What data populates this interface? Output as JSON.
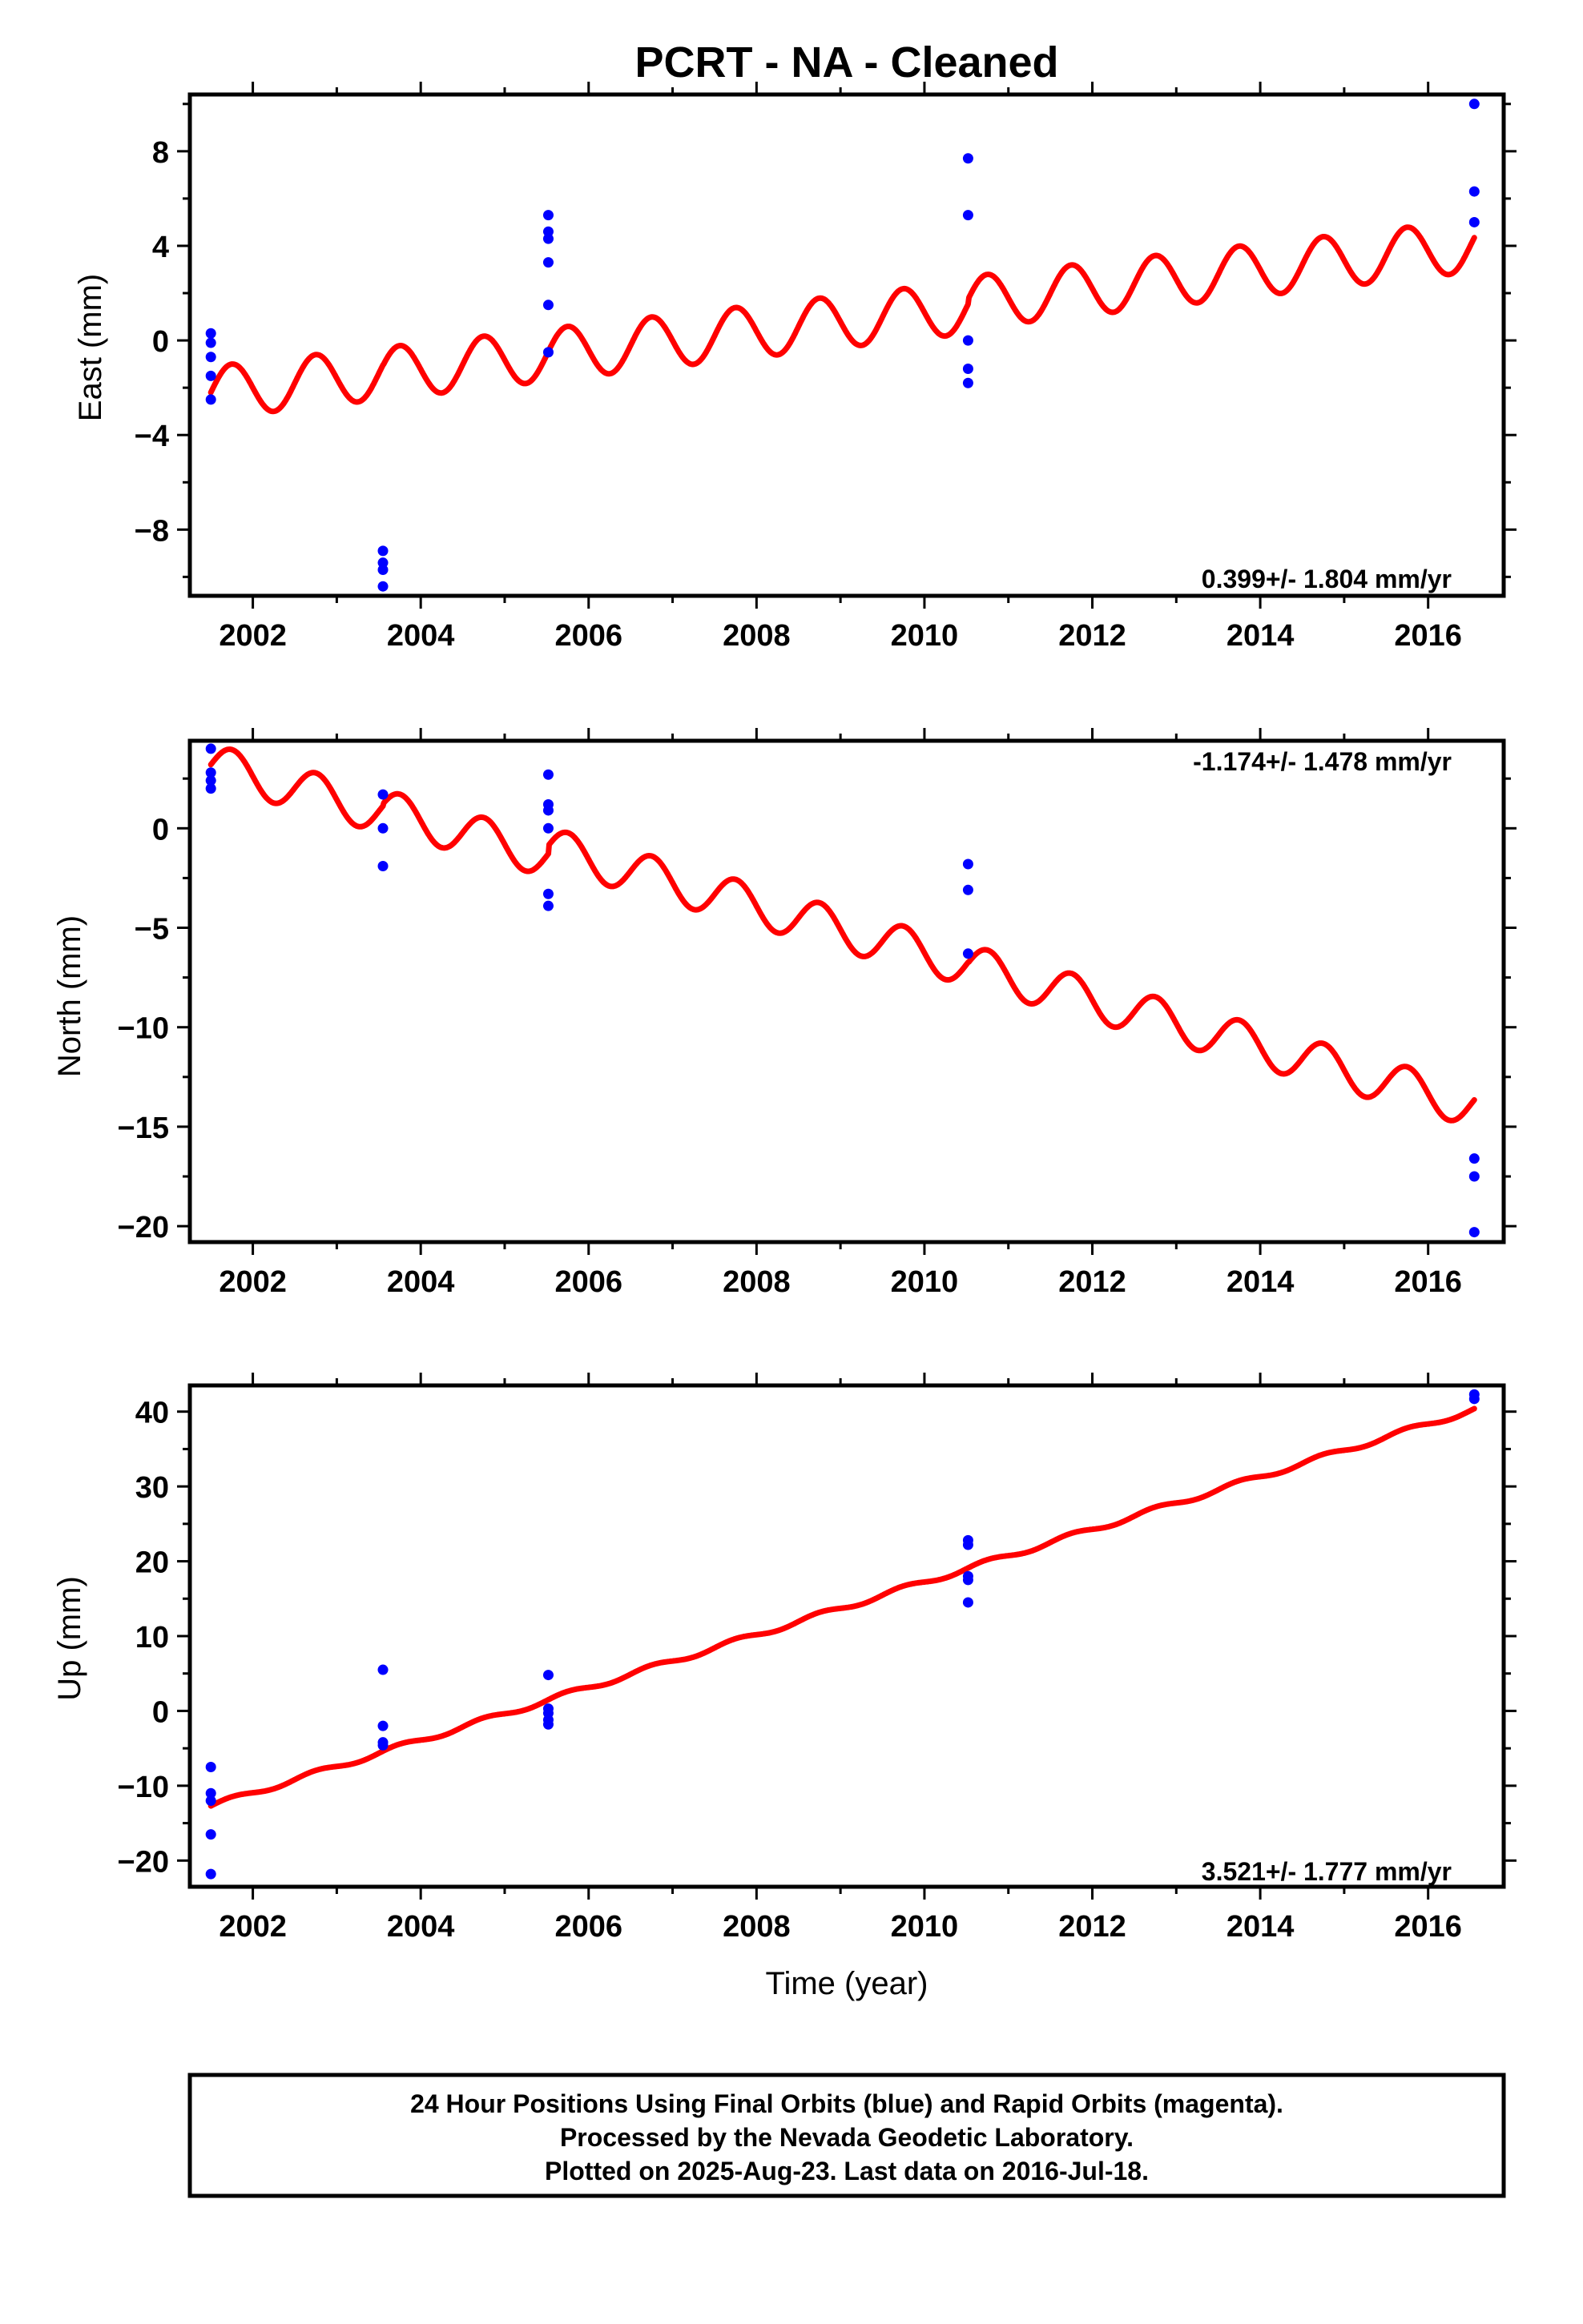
{
  "title": "PCRT  - NA - Cleaned",
  "colors": {
    "final_orbits": "#0000ff",
    "rapid_orbits": "#ff00ff",
    "model": "#ff0000",
    "frame": "#000000"
  },
  "xlabel": "Time (year)",
  "footer": {
    "line1": "24 Hour Positions Using Final Orbits (blue) and Rapid Orbits (magenta).",
    "line2": "Processed by the Nevada Geodetic Laboratory.",
    "line3": "Plotted on 2025-Aug-23. Last data on 2016-Jul-18."
  },
  "chart_data": [
    {
      "type": "scatter",
      "panel": "east",
      "ylabel": "East (mm)",
      "xlim": [
        2001.25,
        2016.9
      ],
      "ylim": [
        -10.8,
        10.4
      ],
      "xticks": [
        "2002",
        "2004",
        "2006",
        "2008",
        "2010",
        "2012",
        "2014",
        "2016"
      ],
      "yticks": [
        "8",
        "4",
        "0",
        "−4",
        "−8"
      ],
      "ytick_values": [
        8,
        4,
        0,
        -4,
        -8
      ],
      "rate_label": "0.399+/- 1.804 mm/yr",
      "rate_position": "bottom-right",
      "points": [
        [
          2001.5,
          0.3
        ],
        [
          2001.5,
          -0.1
        ],
        [
          2001.5,
          -0.7
        ],
        [
          2001.5,
          -1.5
        ],
        [
          2001.5,
          -2.5
        ],
        [
          2003.55,
          -8.9
        ],
        [
          2003.55,
          -9.4
        ],
        [
          2003.55,
          -9.7
        ],
        [
          2003.55,
          -10.4
        ],
        [
          2005.52,
          5.3
        ],
        [
          2005.52,
          4.6
        ],
        [
          2005.52,
          4.3
        ],
        [
          2005.52,
          3.3
        ],
        [
          2005.52,
          1.5
        ],
        [
          2005.52,
          -0.5
        ],
        [
          2010.52,
          7.7
        ],
        [
          2010.52,
          5.3
        ],
        [
          2010.52,
          0.0
        ],
        [
          2010.52,
          -1.2
        ],
        [
          2010.52,
          -1.8
        ],
        [
          2016.55,
          10.0
        ],
        [
          2016.55,
          6.3
        ],
        [
          2016.55,
          5.0
        ]
      ],
      "model": {
        "x_start": 2001.5,
        "x_end": 2016.55,
        "segments": [
          {
            "x_start": 2001.5,
            "x_end": 2003.55,
            "y_at_start": -2.2,
            "slope": 0.399
          },
          {
            "x_start": 2003.55,
            "x_end": 2005.52,
            "y_at_start": -1.4,
            "slope": 0.399
          },
          {
            "x_start": 2005.52,
            "x_end": 2010.52,
            "y_at_start": -0.6,
            "slope": 0.399
          },
          {
            "x_start": 2010.52,
            "x_end": 2016.55,
            "y_at_start": 1.6,
            "slope": 0.399
          }
        ],
        "annual_amplitude": 1.1,
        "annual_phase_year": 2001.5
      }
    },
    {
      "type": "scatter",
      "panel": "north",
      "ylabel": "North (mm)",
      "xlim": [
        2001.25,
        2016.9
      ],
      "ylim": [
        -20.8,
        4.4
      ],
      "xticks": [
        "2002",
        "2004",
        "2006",
        "2008",
        "2010",
        "2012",
        "2014",
        "2016"
      ],
      "yticks": [
        "0",
        "−5",
        "−10",
        "−15",
        "−20"
      ],
      "ytick_values": [
        0,
        -5,
        -10,
        -15,
        -20
      ],
      "rate_label": "-1.174+/- 1.478 mm/yr",
      "rate_position": "top-right",
      "points": [
        [
          2001.5,
          4.0
        ],
        [
          2001.5,
          2.8
        ],
        [
          2001.5,
          2.4
        ],
        [
          2001.5,
          2.0
        ],
        [
          2003.55,
          1.7
        ],
        [
          2003.55,
          0.0
        ],
        [
          2003.55,
          -1.9
        ],
        [
          2005.52,
          2.7
        ],
        [
          2005.52,
          1.2
        ],
        [
          2005.52,
          0.9
        ],
        [
          2005.52,
          0.0
        ],
        [
          2005.52,
          -3.3
        ],
        [
          2005.52,
          -3.9
        ],
        [
          2010.52,
          -1.8
        ],
        [
          2010.52,
          -3.1
        ],
        [
          2010.52,
          -6.3
        ],
        [
          2016.55,
          -16.6
        ],
        [
          2016.55,
          -17.5
        ],
        [
          2016.55,
          -20.3
        ]
      ],
      "model": {
        "x_start": 2001.5,
        "x_end": 2016.55,
        "segments": [
          {
            "x_start": 2001.5,
            "x_end": 2003.55,
            "y_at_start": 3.2,
            "slope": -1.174
          },
          {
            "x_start": 2003.55,
            "x_end": 2005.52,
            "y_at_start": 0.9,
            "slope": -1.174
          },
          {
            "x_start": 2005.52,
            "x_end": 2010.52,
            "y_at_start": -1.0,
            "slope": -1.174
          },
          {
            "x_start": 2010.52,
            "x_end": 2016.55,
            "y_at_start": -6.9,
            "slope": -1.174
          }
        ],
        "annual_amplitude": 1.05,
        "annual_phase_year": 2001.5
      }
    },
    {
      "type": "scatter",
      "panel": "up",
      "ylabel": "Up (mm)",
      "xlim": [
        2001.25,
        2016.9
      ],
      "ylim": [
        -23.5,
        43.5
      ],
      "xticks": [
        "2002",
        "2004",
        "2006",
        "2008",
        "2010",
        "2012",
        "2014",
        "2016"
      ],
      "yticks": [
        "40",
        "30",
        "20",
        "10",
        "0",
        "−10",
        "−20"
      ],
      "ytick_values": [
        40,
        30,
        20,
        10,
        0,
        -10,
        -20
      ],
      "rate_label": "3.521+/- 1.777 mm/yr",
      "rate_position": "bottom-right",
      "points": [
        [
          2001.5,
          -7.5
        ],
        [
          2001.5,
          -11.0
        ],
        [
          2001.5,
          -12.0
        ],
        [
          2001.5,
          -16.5
        ],
        [
          2001.5,
          -21.8
        ],
        [
          2003.55,
          5.5
        ],
        [
          2003.55,
          -2.0
        ],
        [
          2003.55,
          -4.2
        ],
        [
          2003.55,
          -4.6
        ],
        [
          2005.52,
          4.8
        ],
        [
          2005.52,
          0.3
        ],
        [
          2005.52,
          -0.3
        ],
        [
          2005.52,
          -1.2
        ],
        [
          2005.52,
          -1.8
        ],
        [
          2010.52,
          22.8
        ],
        [
          2010.52,
          22.2
        ],
        [
          2010.52,
          18.0
        ],
        [
          2010.52,
          17.5
        ],
        [
          2010.52,
          14.5
        ],
        [
          2016.55,
          42.3
        ],
        [
          2016.55,
          41.7
        ]
      ],
      "model": {
        "x_start": 2001.5,
        "x_end": 2016.55,
        "segments": [
          {
            "x_start": 2001.5,
            "x_end": 2016.55,
            "y_at_start": -12.7,
            "slope": 3.521
          }
        ],
        "annual_amplitude": 0.35,
        "annual_phase_year": 2001.5
      }
    }
  ]
}
